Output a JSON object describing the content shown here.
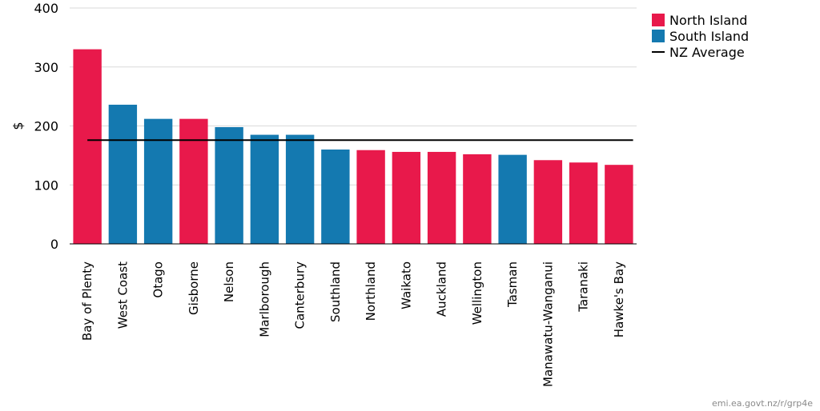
{
  "chart_data": {
    "type": "bar",
    "categories": [
      "Bay of Plenty",
      "West Coast",
      "Otago",
      "Gisborne",
      "Nelson",
      "Marlborough",
      "Canterbury",
      "Southland",
      "Northland",
      "Waikato",
      "Auckland",
      "Wellington",
      "Tasman",
      "Manawatu-Wanganui",
      "Taranaki",
      "Hawke's Bay"
    ],
    "values": [
      330,
      236,
      212,
      212,
      198,
      185,
      185,
      160,
      159,
      156,
      156,
      152,
      151,
      142,
      138,
      134
    ],
    "groups": [
      "North Island",
      "South Island",
      "South Island",
      "North Island",
      "South Island",
      "South Island",
      "South Island",
      "South Island",
      "North Island",
      "North Island",
      "North Island",
      "North Island",
      "South Island",
      "North Island",
      "North Island",
      "North Island"
    ],
    "series": [
      {
        "name": "North Island",
        "color": "#e8194b"
      },
      {
        "name": "South Island",
        "color": "#1479b0"
      }
    ],
    "reference_line": {
      "name": "NZ Average",
      "value": 176,
      "color": "#000000"
    },
    "title": "",
    "xlabel": "",
    "ylabel": "$",
    "ylim": [
      0,
      400
    ],
    "yticks": [
      0,
      100,
      200,
      300,
      400
    ],
    "grid": true,
    "legend_position": "top-right",
    "source": "emi.ea.govt.nz/r/grp4e"
  }
}
